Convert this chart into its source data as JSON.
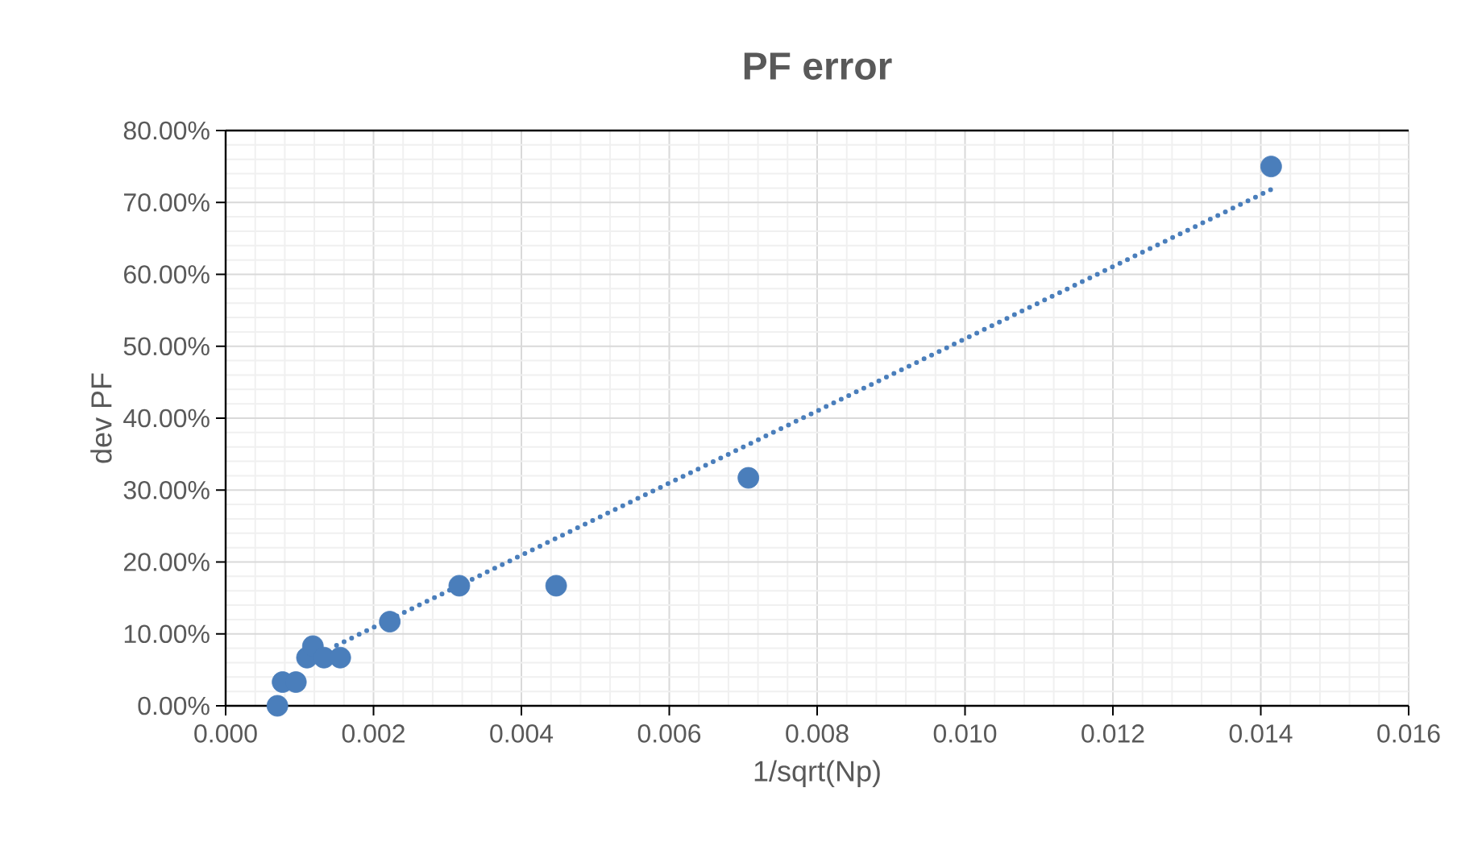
{
  "chart_data": {
    "type": "scatter",
    "title": "PF error",
    "xlabel": "1/sqrt(Np)",
    "ylabel": "dev PF",
    "xlim": [
      0,
      0.016
    ],
    "xticks": [
      {
        "value": 0,
        "label": "0.000"
      },
      {
        "value": 0.002,
        "label": "0.002"
      },
      {
        "value": 0.004,
        "label": "0.004"
      },
      {
        "value": 0.006,
        "label": "0.006"
      },
      {
        "value": 0.008,
        "label": "0.008"
      },
      {
        "value": 0.01,
        "label": "0.010"
      },
      {
        "value": 0.012,
        "label": "0.012"
      },
      {
        "value": 0.014,
        "label": "0.014"
      },
      {
        "value": 0.016,
        "label": "0.016"
      }
    ],
    "ylim": [
      0,
      80
    ],
    "yticks": [
      {
        "value": 0,
        "label": "0.00%"
      },
      {
        "value": 10,
        "label": "10.00%"
      },
      {
        "value": 20,
        "label": "20.00%"
      },
      {
        "value": 30,
        "label": "30.00%"
      },
      {
        "value": 40,
        "label": "40.00%"
      },
      {
        "value": 50,
        "label": "50.00%"
      },
      {
        "value": 60,
        "label": "60.00%"
      },
      {
        "value": 70,
        "label": "70.00%"
      },
      {
        "value": 80,
        "label": "80.00%"
      }
    ],
    "grid": true,
    "legend": false,
    "series": [
      {
        "marker": "circle",
        "color": "#4a7ebb",
        "x": [
          0.0007,
          0.00077,
          0.00095,
          0.0011,
          0.00118,
          0.00133,
          0.00155,
          0.00222,
          0.00316,
          0.00447,
          0.00707,
          0.01414
        ],
        "values": [
          0,
          3.3,
          3.3,
          6.7,
          8.3,
          6.7,
          6.7,
          11.7,
          16.7,
          16.7,
          31.7,
          75
        ]
      },
      {
        "type": "line",
        "marker": "none",
        "line_style": "dotted",
        "color": "#4a7ebb",
        "x": [
          0.0015,
          0.01414
        ],
        "values": [
          8.4,
          71.8
        ]
      }
    ]
  }
}
